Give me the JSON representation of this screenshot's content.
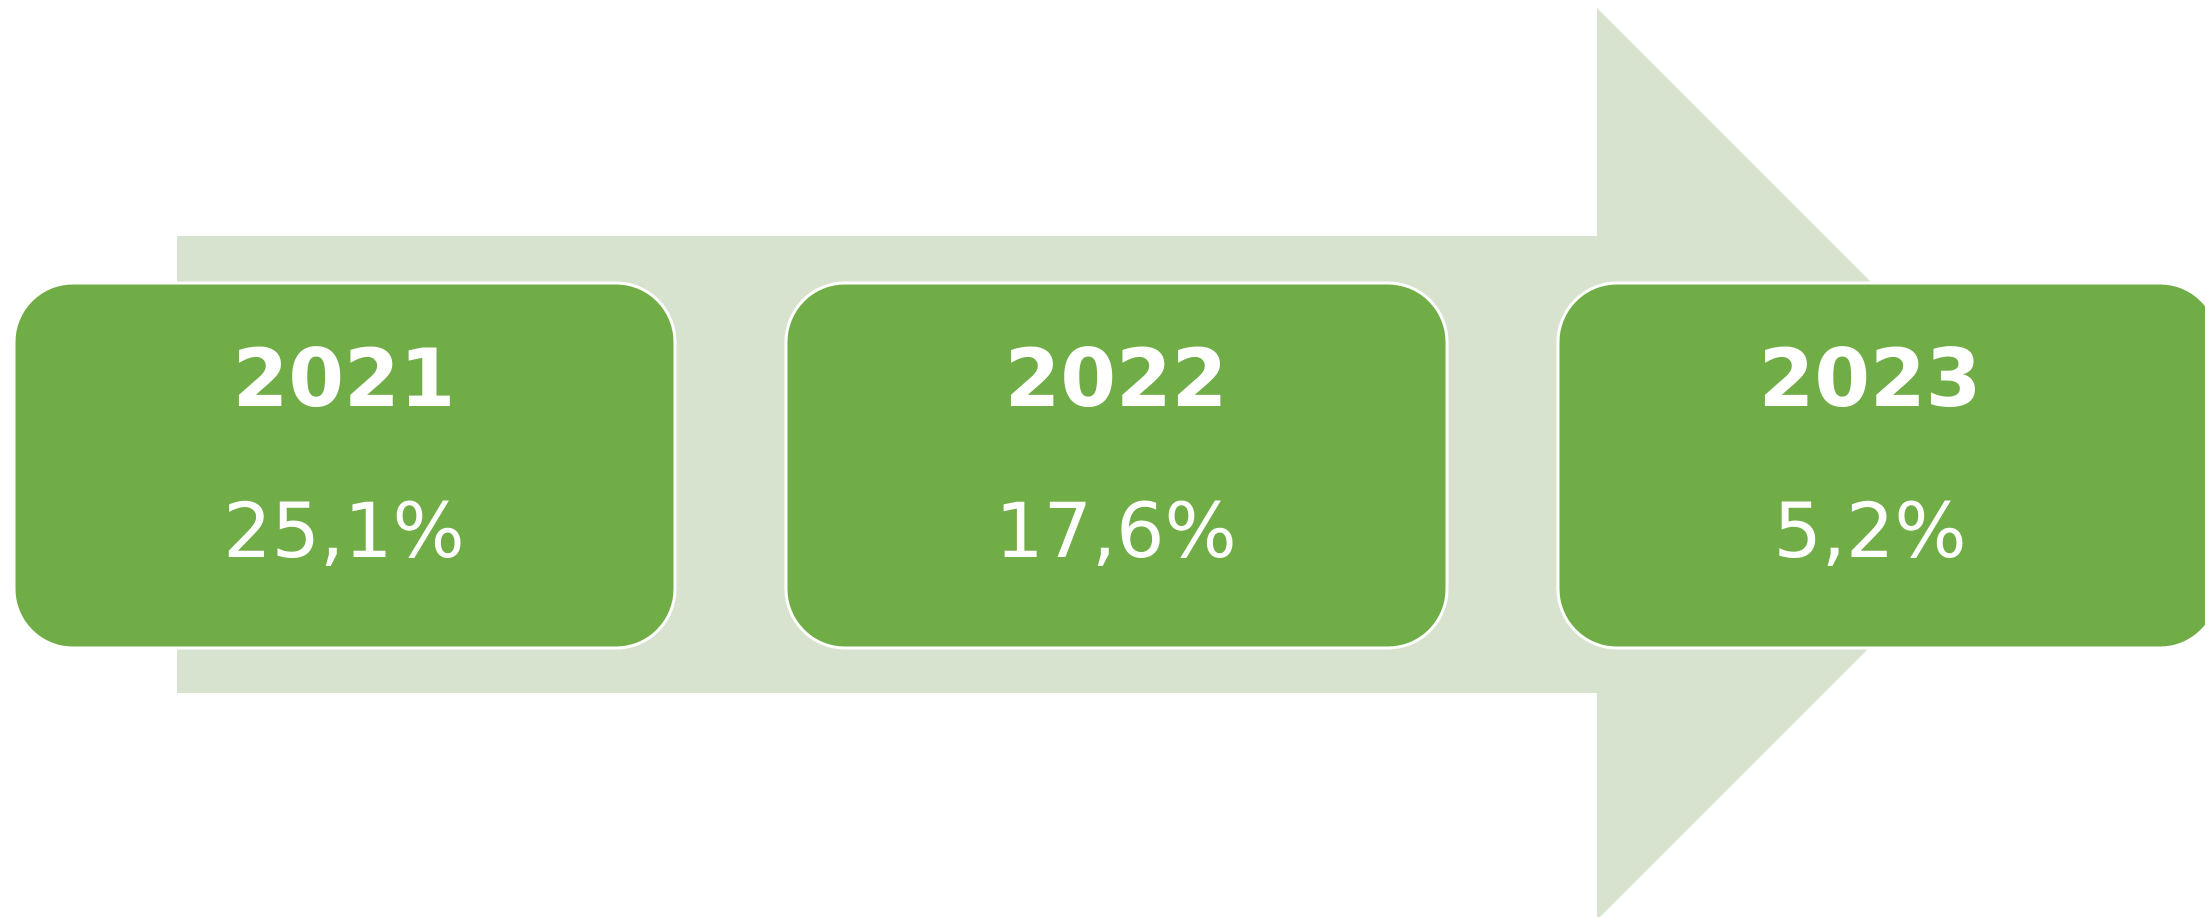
{
  "items": [
    {
      "year": "2021",
      "value": "25,1%"
    },
    {
      "year": "2022",
      "value": "17,6%"
    },
    {
      "year": "2023",
      "value": "5,2%"
    }
  ]
}
